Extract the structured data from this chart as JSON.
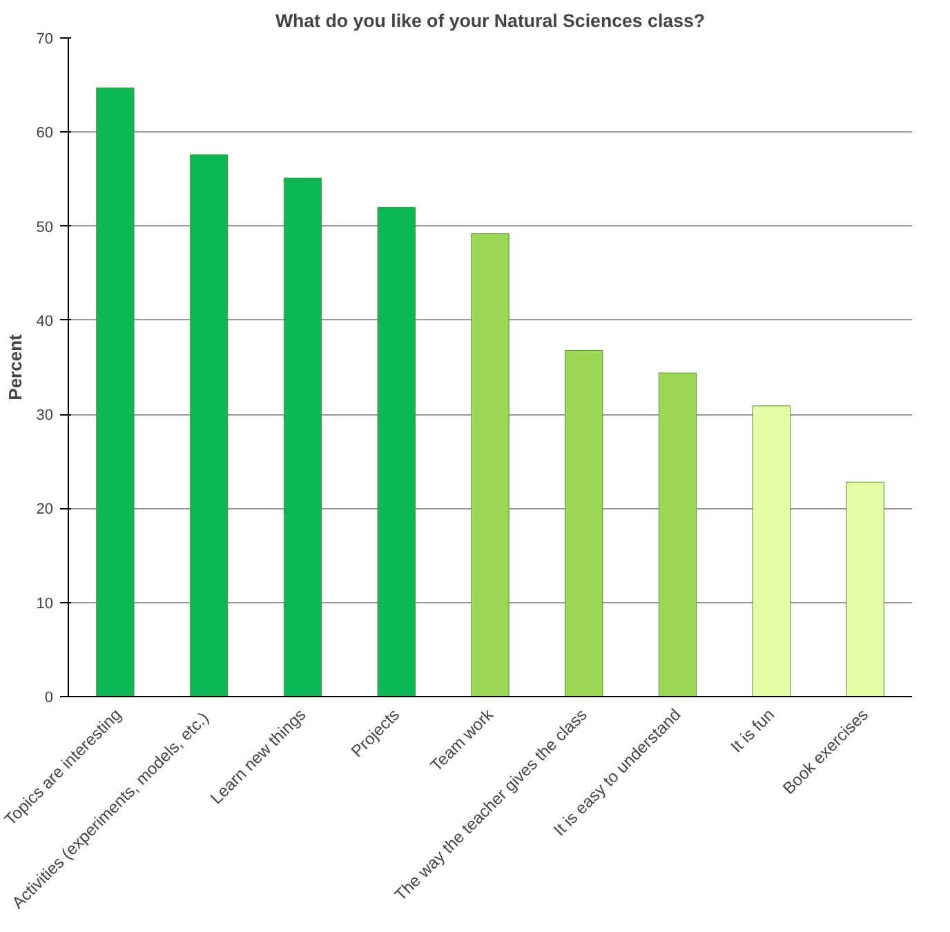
{
  "chart_data": {
    "type": "bar",
    "title": "What do you like of your Natural Sciences class?",
    "ylabel": "Percent",
    "categories": [
      "Topics are interesting",
      "Activities  (experiments, models, etc.)",
      "Learn new things",
      "Projects",
      "Team work",
      "The way the teacher gives the class",
      "It is easy to understand",
      "It is fun",
      "Book exercises"
    ],
    "values": [
      64.7,
      57.6,
      55.1,
      52.0,
      49.2,
      36.8,
      34.4,
      30.9,
      22.8
    ],
    "colors": [
      "#0bb854",
      "#0bb854",
      "#0bb854",
      "#0bb854",
      "#9bd855",
      "#9bd855",
      "#9bd855",
      "#e4fca2",
      "#e4fca2"
    ],
    "ylim": [
      0,
      70
    ],
    "yticks": [
      0,
      10,
      20,
      30,
      40,
      50,
      60,
      70
    ],
    "grid": "y"
  }
}
